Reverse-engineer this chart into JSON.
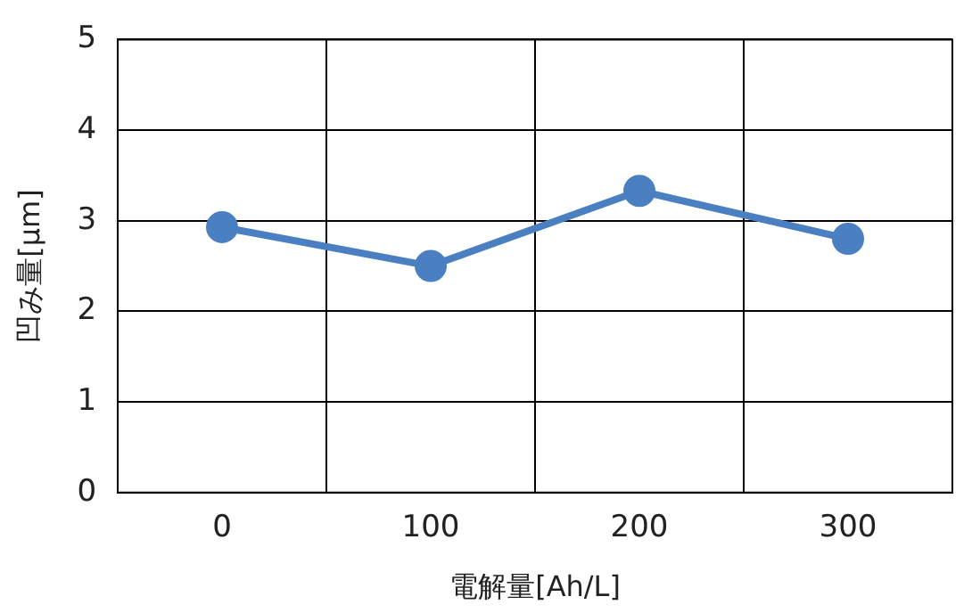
{
  "chart_data": {
    "type": "line",
    "xlabel": "電解量[Ah/L]",
    "ylabel": "凹み量[μm]",
    "categories": [
      "0",
      "100",
      "200",
      "300"
    ],
    "series": [
      {
        "color": "#4a7fc1",
        "values": [
          2.93,
          2.5,
          3.33,
          2.8
        ]
      }
    ],
    "ylim": [
      0,
      5
    ],
    "yticks": [
      0,
      1,
      2,
      3,
      4,
      5
    ],
    "grid": true,
    "legend": false,
    "marker": "circle",
    "line_style": "solid"
  }
}
